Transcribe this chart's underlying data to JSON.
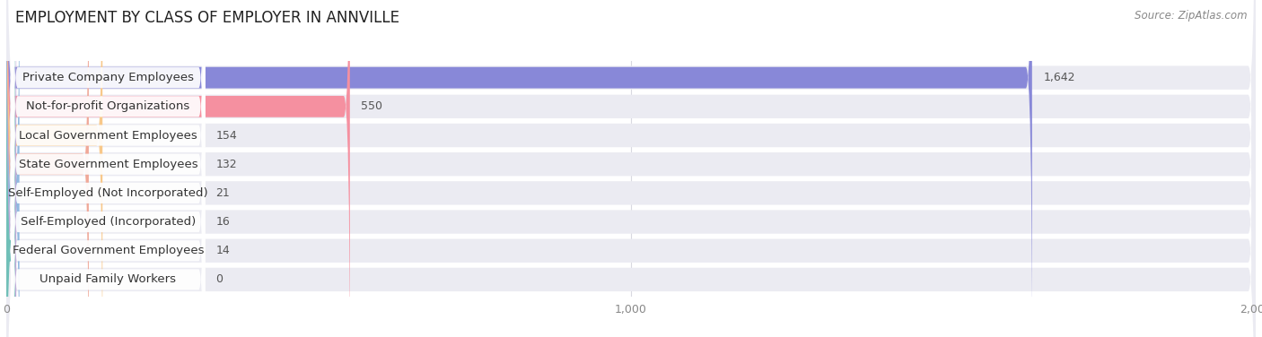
{
  "title": "EMPLOYMENT BY CLASS OF EMPLOYER IN ANNVILLE",
  "source": "Source: ZipAtlas.com",
  "categories": [
    "Private Company Employees",
    "Not-for-profit Organizations",
    "Local Government Employees",
    "State Government Employees",
    "Self-Employed (Not Incorporated)",
    "Self-Employed (Incorporated)",
    "Federal Government Employees",
    "Unpaid Family Workers"
  ],
  "values": [
    1642,
    550,
    154,
    132,
    21,
    16,
    14,
    0
  ],
  "bar_colors": [
    "#8888d8",
    "#f590a0",
    "#f8c88a",
    "#f0a898",
    "#90b8e0",
    "#c0a8d8",
    "#70c0b8",
    "#b8c8e8"
  ],
  "row_bg_color": "#ebebf2",
  "label_bg_color": "#ffffff",
  "xlim": [
    0,
    2000
  ],
  "xticks": [
    0,
    1000,
    2000
  ],
  "xtick_labels": [
    "0",
    "1,000",
    "2,000"
  ],
  "title_fontsize": 12,
  "label_fontsize": 9.5,
  "value_fontsize": 9,
  "source_fontsize": 8.5,
  "background_color": "#ffffff"
}
